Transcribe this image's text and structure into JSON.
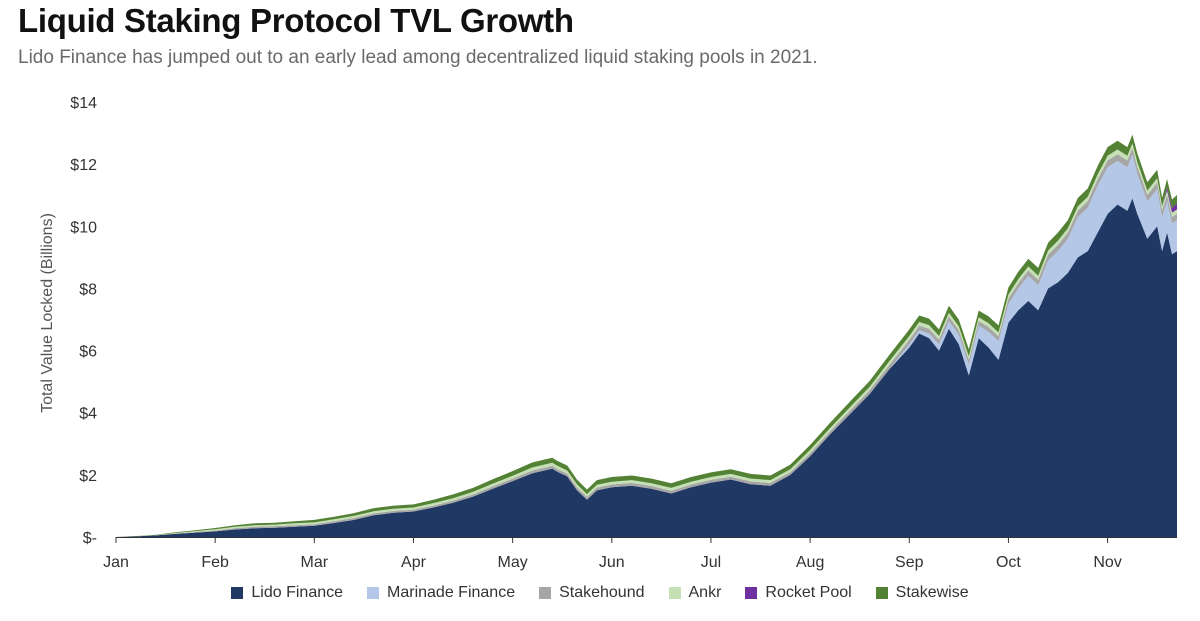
{
  "chart_data": {
    "type": "area",
    "stacked": true,
    "title": "Liquid Staking Protocol TVL Growth",
    "subtitle": "Lido Finance has jumped out to an early lead among decentralized liquid staking pools in 2021.",
    "xlabel": "",
    "ylabel": "Total Value Locked (Billions)",
    "ylim": [
      0,
      14
    ],
    "xlim": [
      0,
      10.7
    ],
    "y_ticks": [
      0,
      2,
      4,
      6,
      8,
      10,
      12,
      14
    ],
    "y_tick_labels": [
      "$-",
      "$2",
      "$4",
      "$6",
      "$8",
      "$10",
      "$12",
      "$14"
    ],
    "x_tick_positions": [
      0,
      1,
      2,
      3,
      4,
      5,
      6,
      7,
      8,
      9,
      10
    ],
    "x_tick_labels": [
      "Jan",
      "Feb",
      "Mar",
      "Apr",
      "May",
      "Jun",
      "Jul",
      "Aug",
      "Sep",
      "Oct",
      "Nov"
    ],
    "legend_position": "bottom",
    "x": [
      0,
      0.2,
      0.4,
      0.6,
      0.8,
      1.0,
      1.2,
      1.4,
      1.6,
      1.8,
      2.0,
      2.2,
      2.4,
      2.6,
      2.8,
      3.0,
      3.2,
      3.4,
      3.6,
      3.8,
      4.0,
      4.2,
      4.4,
      4.45,
      4.55,
      4.65,
      4.75,
      4.85,
      5.0,
      5.2,
      5.4,
      5.6,
      5.8,
      6.0,
      6.2,
      6.4,
      6.6,
      6.8,
      7.0,
      7.2,
      7.4,
      7.6,
      7.8,
      8.0,
      8.1,
      8.2,
      8.3,
      8.4,
      8.5,
      8.6,
      8.7,
      8.8,
      8.9,
      9.0,
      9.1,
      9.2,
      9.3,
      9.4,
      9.5,
      9.6,
      9.7,
      9.8,
      9.9,
      10.0,
      10.1,
      10.2,
      10.25,
      10.3,
      10.4,
      10.5,
      10.55,
      10.6,
      10.65,
      10.7
    ],
    "series": [
      {
        "name": "Lido Finance",
        "color": "#1f3864",
        "values": [
          0,
          0.02,
          0.05,
          0.1,
          0.14,
          0.18,
          0.24,
          0.28,
          0.3,
          0.33,
          0.36,
          0.45,
          0.55,
          0.7,
          0.78,
          0.82,
          0.95,
          1.1,
          1.3,
          1.55,
          1.8,
          2.05,
          2.2,
          2.1,
          1.95,
          1.5,
          1.2,
          1.5,
          1.6,
          1.65,
          1.55,
          1.4,
          1.6,
          1.75,
          1.85,
          1.7,
          1.65,
          2.0,
          2.6,
          3.3,
          3.95,
          4.6,
          5.4,
          6.1,
          6.55,
          6.4,
          6.0,
          6.7,
          6.2,
          5.2,
          6.4,
          6.1,
          5.7,
          6.9,
          7.3,
          7.6,
          7.3,
          8.0,
          8.2,
          8.5,
          9.0,
          9.2,
          9.8,
          10.4,
          10.7,
          10.5,
          10.9,
          10.4,
          9.6,
          10.0,
          9.2,
          9.8,
          9.1,
          9.2
        ]
      },
      {
        "name": "Marinade Finance",
        "color": "#b4c7e7",
        "values": [
          0,
          0,
          0,
          0,
          0,
          0,
          0,
          0,
          0,
          0,
          0,
          0,
          0,
          0,
          0,
          0,
          0,
          0,
          0,
          0,
          0,
          0,
          0,
          0,
          0,
          0,
          0,
          0,
          0,
          0,
          0,
          0,
          0,
          0,
          0,
          0,
          0,
          0,
          0,
          0,
          0,
          0,
          0,
          0.1,
          0.1,
          0.15,
          0.2,
          0.25,
          0.3,
          0.35,
          0.4,
          0.5,
          0.6,
          0.6,
          0.7,
          0.8,
          0.8,
          0.9,
          1.0,
          1.1,
          1.3,
          1.4,
          1.5,
          1.5,
          1.4,
          1.4,
          1.4,
          1.3,
          1.2,
          1.2,
          1.1,
          1.0,
          1.0,
          1.0
        ]
      },
      {
        "name": "Stakehound",
        "color": "#a6a6a6",
        "values": [
          0,
          0,
          0,
          0.01,
          0.02,
          0.03,
          0.04,
          0.05,
          0.05,
          0.05,
          0.05,
          0.06,
          0.06,
          0.06,
          0.06,
          0.06,
          0.06,
          0.07,
          0.07,
          0.08,
          0.08,
          0.09,
          0.09,
          0.09,
          0.09,
          0.09,
          0.09,
          0.09,
          0.09,
          0.09,
          0.09,
          0.09,
          0.09,
          0.09,
          0.09,
          0.09,
          0.09,
          0.09,
          0.1,
          0.1,
          0.11,
          0.12,
          0.14,
          0.15,
          0.15,
          0.15,
          0.15,
          0.15,
          0.15,
          0.15,
          0.15,
          0.16,
          0.16,
          0.17,
          0.17,
          0.18,
          0.18,
          0.19,
          0.2,
          0.2,
          0.2,
          0.21,
          0.22,
          0.22,
          0.22,
          0.22,
          0.22,
          0.22,
          0.21,
          0.21,
          0.21,
          0.21,
          0.2,
          0.2
        ]
      },
      {
        "name": "Ankr",
        "color": "#c5e0b4",
        "values": [
          0,
          0,
          0.01,
          0.02,
          0.03,
          0.04,
          0.05,
          0.05,
          0.05,
          0.06,
          0.06,
          0.06,
          0.07,
          0.07,
          0.07,
          0.07,
          0.08,
          0.08,
          0.08,
          0.09,
          0.09,
          0.1,
          0.1,
          0.1,
          0.1,
          0.1,
          0.09,
          0.09,
          0.09,
          0.09,
          0.09,
          0.09,
          0.09,
          0.09,
          0.09,
          0.09,
          0.09,
          0.09,
          0.1,
          0.1,
          0.11,
          0.11,
          0.12,
          0.12,
          0.12,
          0.12,
          0.12,
          0.12,
          0.12,
          0.12,
          0.12,
          0.12,
          0.12,
          0.13,
          0.13,
          0.13,
          0.13,
          0.13,
          0.14,
          0.14,
          0.14,
          0.14,
          0.15,
          0.15,
          0.15,
          0.15,
          0.15,
          0.15,
          0.14,
          0.14,
          0.14,
          0.14,
          0.14,
          0.14
        ]
      },
      {
        "name": "Rocket Pool",
        "color": "#7030a0",
        "values": [
          0,
          0,
          0,
          0,
          0,
          0,
          0,
          0,
          0,
          0,
          0,
          0,
          0,
          0,
          0,
          0,
          0,
          0,
          0,
          0,
          0,
          0,
          0,
          0,
          0,
          0,
          0,
          0,
          0,
          0,
          0,
          0,
          0,
          0,
          0,
          0,
          0,
          0,
          0,
          0,
          0,
          0,
          0,
          0,
          0,
          0,
          0,
          0,
          0,
          0,
          0,
          0,
          0,
          0,
          0,
          0,
          0,
          0,
          0,
          0,
          0,
          0,
          0,
          0,
          0,
          0,
          0,
          0,
          0,
          0,
          0,
          0.1,
          0.15,
          0.2
        ]
      },
      {
        "name": "Stakewise",
        "color": "#548235",
        "values": [
          0,
          0.01,
          0.01,
          0.02,
          0.03,
          0.04,
          0.05,
          0.06,
          0.06,
          0.07,
          0.08,
          0.08,
          0.09,
          0.1,
          0.1,
          0.1,
          0.11,
          0.12,
          0.13,
          0.14,
          0.15,
          0.16,
          0.16,
          0.16,
          0.16,
          0.15,
          0.15,
          0.15,
          0.15,
          0.15,
          0.15,
          0.15,
          0.15,
          0.15,
          0.15,
          0.15,
          0.15,
          0.15,
          0.16,
          0.17,
          0.18,
          0.19,
          0.2,
          0.21,
          0.21,
          0.21,
          0.21,
          0.22,
          0.22,
          0.22,
          0.22,
          0.22,
          0.23,
          0.23,
          0.24,
          0.24,
          0.25,
          0.25,
          0.26,
          0.26,
          0.27,
          0.27,
          0.28,
          0.28,
          0.28,
          0.28,
          0.28,
          0.28,
          0.27,
          0.27,
          0.27,
          0.27,
          0.27,
          0.27
        ]
      }
    ]
  }
}
